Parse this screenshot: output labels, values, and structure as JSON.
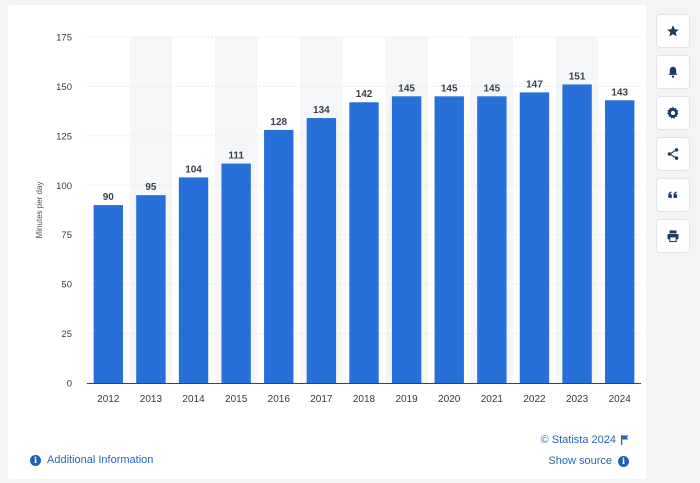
{
  "chart_data": {
    "type": "bar",
    "categories": [
      "2012",
      "2013",
      "2014",
      "2015",
      "2016",
      "2017",
      "2018",
      "2019",
      "2020",
      "2021",
      "2022",
      "2023",
      "2024"
    ],
    "values": [
      90,
      95,
      104,
      111,
      128,
      134,
      142,
      145,
      145,
      145,
      147,
      151,
      143
    ],
    "ylabel": "Minutes per day",
    "ylim": [
      0,
      175
    ],
    "yticks": [
      0,
      25,
      50,
      75,
      100,
      125,
      150,
      175
    ],
    "bar_color": "#2870d9",
    "grid": true,
    "legend": "none"
  },
  "footer": {
    "additional_info": "Additional Information",
    "copyright": "© Statista 2024",
    "show_source": "Show source"
  },
  "toolbar": {
    "icons": [
      "star-icon",
      "bell-icon",
      "gear-icon",
      "share-icon",
      "quote-icon",
      "print-icon"
    ]
  },
  "colors": {
    "link": "#2a63b8",
    "toolbar_icon": "#1e3a5f"
  }
}
